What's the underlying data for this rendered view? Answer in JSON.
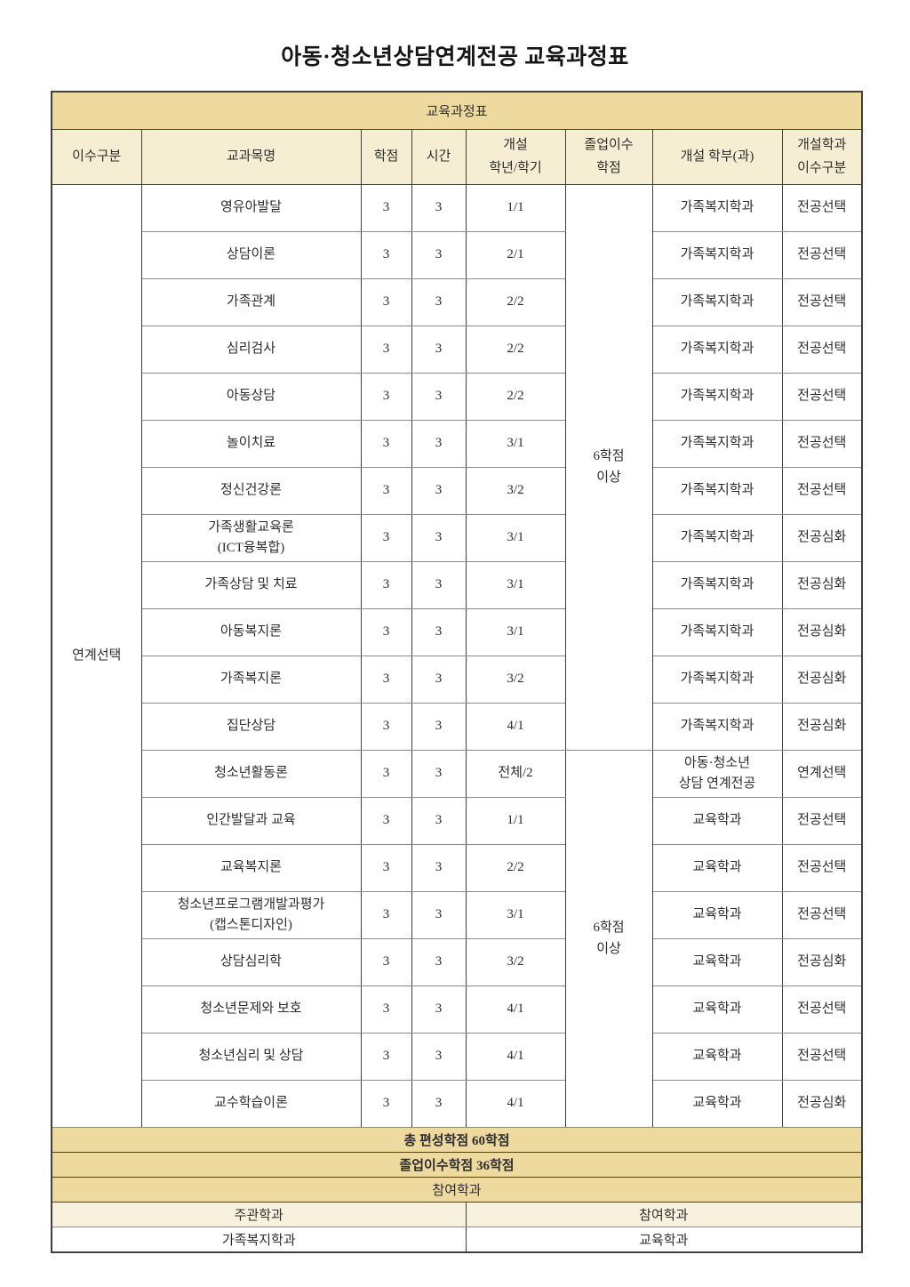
{
  "page_title": "아동·청소년상담연계전공 교육과정표",
  "colors": {
    "band_tan": "#eeda9f",
    "header_cream": "#f6eed2",
    "sub_header_pale": "#f7f1de",
    "border_dark": "#3f3f3f",
    "border_gray": "#8c8c8c",
    "text": "#2d2d2d"
  },
  "table": {
    "caption": "교육과정표",
    "columns": [
      "이수구분",
      "교과목명",
      "학점",
      "시간",
      "개설\n학년/학기",
      "졸업이수\n학점",
      "개설 학부(과)",
      "개설학과\n이수구분"
    ],
    "category": "연계선택",
    "groups": [
      {
        "grad_credits": "6학점\n이상",
        "courses": [
          {
            "name": "영유아발달",
            "credits": "3",
            "hours": "3",
            "semester": "1/1",
            "dept": "가족복지학과",
            "type": "전공선택"
          },
          {
            "name": "상담이론",
            "credits": "3",
            "hours": "3",
            "semester": "2/1",
            "dept": "가족복지학과",
            "type": "전공선택"
          },
          {
            "name": "가족관계",
            "credits": "3",
            "hours": "3",
            "semester": "2/2",
            "dept": "가족복지학과",
            "type": "전공선택"
          },
          {
            "name": "심리검사",
            "credits": "3",
            "hours": "3",
            "semester": "2/2",
            "dept": "가족복지학과",
            "type": "전공선택"
          },
          {
            "name": "아동상담",
            "credits": "3",
            "hours": "3",
            "semester": "2/2",
            "dept": "가족복지학과",
            "type": "전공선택"
          },
          {
            "name": "놀이치료",
            "credits": "3",
            "hours": "3",
            "semester": "3/1",
            "dept": "가족복지학과",
            "type": "전공선택"
          },
          {
            "name": "정신건강론",
            "credits": "3",
            "hours": "3",
            "semester": "3/2",
            "dept": "가족복지학과",
            "type": "전공선택"
          },
          {
            "name": "가족생활교육론\n(ICT융복합)",
            "credits": "3",
            "hours": "3",
            "semester": "3/1",
            "dept": "가족복지학과",
            "type": "전공심화"
          },
          {
            "name": "가족상담 및 치료",
            "credits": "3",
            "hours": "3",
            "semester": "3/1",
            "dept": "가족복지학과",
            "type": "전공심화"
          },
          {
            "name": "아동복지론",
            "credits": "3",
            "hours": "3",
            "semester": "3/1",
            "dept": "가족복지학과",
            "type": "전공심화"
          },
          {
            "name": "가족복지론",
            "credits": "3",
            "hours": "3",
            "semester": "3/2",
            "dept": "가족복지학과",
            "type": "전공심화"
          },
          {
            "name": "집단상담",
            "credits": "3",
            "hours": "3",
            "semester": "4/1",
            "dept": "가족복지학과",
            "type": "전공심화"
          }
        ]
      },
      {
        "grad_credits": "6학점\n이상",
        "courses": [
          {
            "name": "청소년활동론",
            "credits": "3",
            "hours": "3",
            "semester": "전체/2",
            "dept": "아동·청소년\n상담 연계전공",
            "type": "연계선택"
          },
          {
            "name": "인간발달과 교육",
            "credits": "3",
            "hours": "3",
            "semester": "1/1",
            "dept": "교육학과",
            "type": "전공선택"
          },
          {
            "name": "교육복지론",
            "credits": "3",
            "hours": "3",
            "semester": "2/2",
            "dept": "교육학과",
            "type": "전공선택"
          },
          {
            "name": "청소년프로그램개발과평가\n(캡스톤디자인)",
            "credits": "3",
            "hours": "3",
            "semester": "3/1",
            "dept": "교육학과",
            "type": "전공선택"
          },
          {
            "name": "상담심리학",
            "credits": "3",
            "hours": "3",
            "semester": "3/2",
            "dept": "교육학과",
            "type": "전공심화"
          },
          {
            "name": "청소년문제와 보호",
            "credits": "3",
            "hours": "3",
            "semester": "4/1",
            "dept": "교육학과",
            "type": "전공선택"
          },
          {
            "name": "청소년심리 및 상담",
            "credits": "3",
            "hours": "3",
            "semester": "4/1",
            "dept": "교육학과",
            "type": "전공선택"
          },
          {
            "name": "교수학습이론",
            "credits": "3",
            "hours": "3",
            "semester": "4/1",
            "dept": "교육학과",
            "type": "전공심화"
          }
        ]
      }
    ],
    "footer": {
      "total_credits": "총 편성학점 60학점",
      "graduation_credits": "졸업이수학점 36학점",
      "participating_band": "참여학과",
      "managing_dept_label": "주관학과",
      "participating_dept_label": "참여학과",
      "managing_dept_value": "가족복지학과",
      "participating_dept_value": "교육학과"
    }
  }
}
